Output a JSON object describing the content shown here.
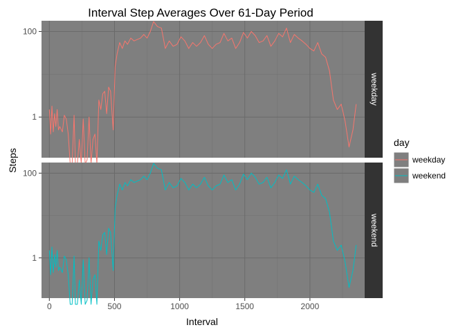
{
  "chart_data": {
    "type": "line",
    "title": "Interval Step Averages Over 61-Day Period",
    "xlabel": "Interval",
    "ylabel": "Steps",
    "x_ticks": [
      0,
      500,
      1000,
      1500,
      2000
    ],
    "x_tick_labels": [
      "0",
      "500",
      "1000",
      "1500",
      "2000"
    ],
    "xlim": [
      -60,
      2420
    ],
    "y_scale": "log10",
    "y_ticks": [
      1,
      100
    ],
    "y_tick_labels": [
      "1",
      "100"
    ],
    "ylim_log10": [
      -0.95,
      2.25
    ],
    "grid": true,
    "legend": {
      "title": "day",
      "position": "right",
      "entries": [
        "weekday",
        "weekend"
      ]
    },
    "colors": {
      "weekday": "#F8766D",
      "weekend": "#00BFC4",
      "panel": "#7f7f7f",
      "strip": "#333333"
    },
    "panels": [
      {
        "strip": "weekday",
        "series": {
          "name": "weekday",
          "x": [
            0,
            10,
            20,
            30,
            40,
            50,
            60,
            70,
            80,
            100,
            115,
            130,
            145,
            160,
            175,
            190,
            200,
            215,
            230,
            245,
            260,
            275,
            290,
            305,
            320,
            335,
            350,
            365,
            380,
            395,
            410,
            425,
            440,
            455,
            470,
            490,
            505,
            520,
            540,
            560,
            580,
            600,
            625,
            650,
            675,
            700,
            725,
            750,
            775,
            800,
            830,
            860,
            890,
            920,
            950,
            980,
            1010,
            1040,
            1070,
            1100,
            1130,
            1160,
            1190,
            1220,
            1250,
            1280,
            1310,
            1340,
            1370,
            1400,
            1430,
            1460,
            1490,
            1520,
            1550,
            1580,
            1610,
            1640,
            1670,
            1700,
            1730,
            1760,
            1790,
            1820,
            1850,
            1880,
            1910,
            1940,
            1970,
            2000,
            2030,
            2060,
            2090,
            2120,
            2150,
            2180,
            2210,
            2240,
            2270,
            2300,
            2330,
            2355
          ],
          "y": [
            1.5,
            0.4,
            1.8,
            0.45,
            1.2,
            0.6,
            1.5,
            0.5,
            0.6,
            0.45,
            1.1,
            0.9,
            0.4,
            0.08,
            0.08,
            1.1,
            0.08,
            0.08,
            0.3,
            0.08,
            0.9,
            0.08,
            0.1,
            1.0,
            0.08,
            0.3,
            0.4,
            0.08,
            2.5,
            1.5,
            3.5,
            4.0,
            1.2,
            5.0,
            4.0,
            0.5,
            15,
            30,
            55,
            40,
            60,
            50,
            70,
            60,
            65,
            70,
            85,
            70,
            100,
            170,
            130,
            120,
            40,
            60,
            45,
            50,
            75,
            60,
            40,
            55,
            45,
            55,
            80,
            50,
            40,
            50,
            55,
            90,
            60,
            70,
            40,
            55,
            95,
            70,
            100,
            80,
            55,
            60,
            80,
            45,
            60,
            90,
            75,
            120,
            55,
            85,
            70,
            60,
            50,
            40,
            35,
            55,
            30,
            25,
            12,
            2.5,
            1.5,
            2.0,
            0.8,
            0.2,
            0.5,
            2.0
          ]
        }
      },
      {
        "strip": "weekend",
        "series": {
          "name": "weekend",
          "x": [
            0,
            10,
            20,
            30,
            40,
            50,
            60,
            70,
            80,
            100,
            115,
            130,
            145,
            160,
            175,
            190,
            200,
            215,
            230,
            245,
            260,
            275,
            290,
            305,
            320,
            335,
            350,
            365,
            380,
            395,
            410,
            425,
            440,
            455,
            470,
            490,
            505,
            520,
            540,
            560,
            580,
            600,
            625,
            650,
            675,
            700,
            725,
            750,
            775,
            800,
            830,
            860,
            890,
            920,
            950,
            980,
            1010,
            1040,
            1070,
            1100,
            1130,
            1160,
            1190,
            1220,
            1250,
            1280,
            1310,
            1340,
            1370,
            1400,
            1430,
            1460,
            1490,
            1520,
            1550,
            1580,
            1610,
            1640,
            1670,
            1700,
            1730,
            1760,
            1790,
            1820,
            1850,
            1880,
            1910,
            1940,
            1970,
            2000,
            2030,
            2060,
            2090,
            2120,
            2150,
            2180,
            2210,
            2240,
            2270,
            2300,
            2330,
            2355
          ],
          "y": [
            1.5,
            0.4,
            1.8,
            0.45,
            1.2,
            0.6,
            1.5,
            0.5,
            0.6,
            0.45,
            1.1,
            0.9,
            0.4,
            0.08,
            0.08,
            1.1,
            0.08,
            0.08,
            0.3,
            0.08,
            0.9,
            0.08,
            0.1,
            1.0,
            0.08,
            0.3,
            0.4,
            0.08,
            2.5,
            1.5,
            3.5,
            4.0,
            1.2,
            5.0,
            4.0,
            0.5,
            15,
            30,
            55,
            40,
            60,
            50,
            70,
            60,
            65,
            70,
            85,
            70,
            100,
            170,
            130,
            120,
            40,
            60,
            45,
            50,
            75,
            60,
            40,
            55,
            45,
            55,
            80,
            50,
            40,
            50,
            55,
            90,
            60,
            70,
            40,
            55,
            95,
            70,
            100,
            80,
            55,
            60,
            80,
            45,
            60,
            90,
            75,
            120,
            55,
            85,
            70,
            60,
            50,
            40,
            35,
            55,
            30,
            25,
            12,
            2.5,
            1.5,
            2.0,
            0.8,
            0.2,
            0.5,
            2.0
          ]
        }
      }
    ]
  }
}
